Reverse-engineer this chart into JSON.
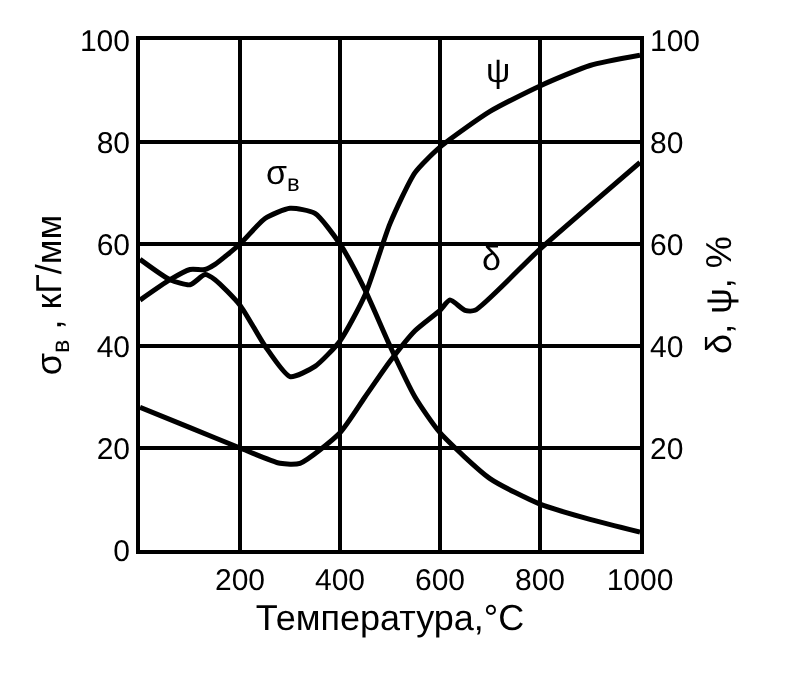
{
  "chart_data": {
    "type": "line",
    "xlabel": "Температура,°С",
    "ylabel": "σ$_{в}$ , кГ/мм",
    "y2label": "δ, ψ, %",
    "xlim": [
      0,
      1000
    ],
    "xticks": [
      {
        "value": 0,
        "label": null
      },
      200,
      400,
      600,
      800,
      1000
    ],
    "ylim": [
      0,
      100
    ],
    "yticks": [
      0,
      20,
      40,
      60,
      80,
      100
    ],
    "y2lim": [
      0,
      100
    ],
    "y2ticks": [
      20,
      40,
      60,
      80,
      100
    ],
    "grid": true,
    "legend": false,
    "marker": "none",
    "line_style": "solid",
    "series": [
      {
        "name": "σ$_{в}$",
        "color": "#000000",
        "x": [
          0,
          60,
          100,
          130,
          150,
          200,
          250,
          300,
          350,
          400,
          450,
          500,
          550,
          600,
          700,
          800,
          900,
          1000
        ],
        "values": [
          49,
          53,
          55,
          55,
          56,
          60,
          65,
          67,
          66,
          60,
          51,
          40,
          30,
          23,
          14,
          9,
          6,
          3.5
        ]
      },
      {
        "name": "δ",
        "color": "#000000",
        "axis": "y2",
        "x": [
          0,
          100,
          200,
          280,
          320,
          400,
          450,
          500,
          550,
          600,
          620,
          650,
          670,
          800,
          1000
        ],
        "values": [
          28,
          24,
          20,
          17,
          17,
          23,
          30,
          37,
          43,
          47,
          49,
          47,
          47,
          59,
          76
        ]
      },
      {
        "name": "ψ",
        "color": "#000000",
        "axis": "y2",
        "x": [
          0,
          60,
          100,
          130,
          150,
          200,
          250,
          300,
          350,
          400,
          450,
          500,
          550,
          600,
          700,
          800,
          900,
          1000
        ],
        "values": [
          57,
          53,
          52,
          54,
          53,
          48,
          40,
          34,
          36,
          41,
          50,
          64,
          74,
          79,
          86,
          91,
          95,
          97
        ]
      }
    ]
  }
}
